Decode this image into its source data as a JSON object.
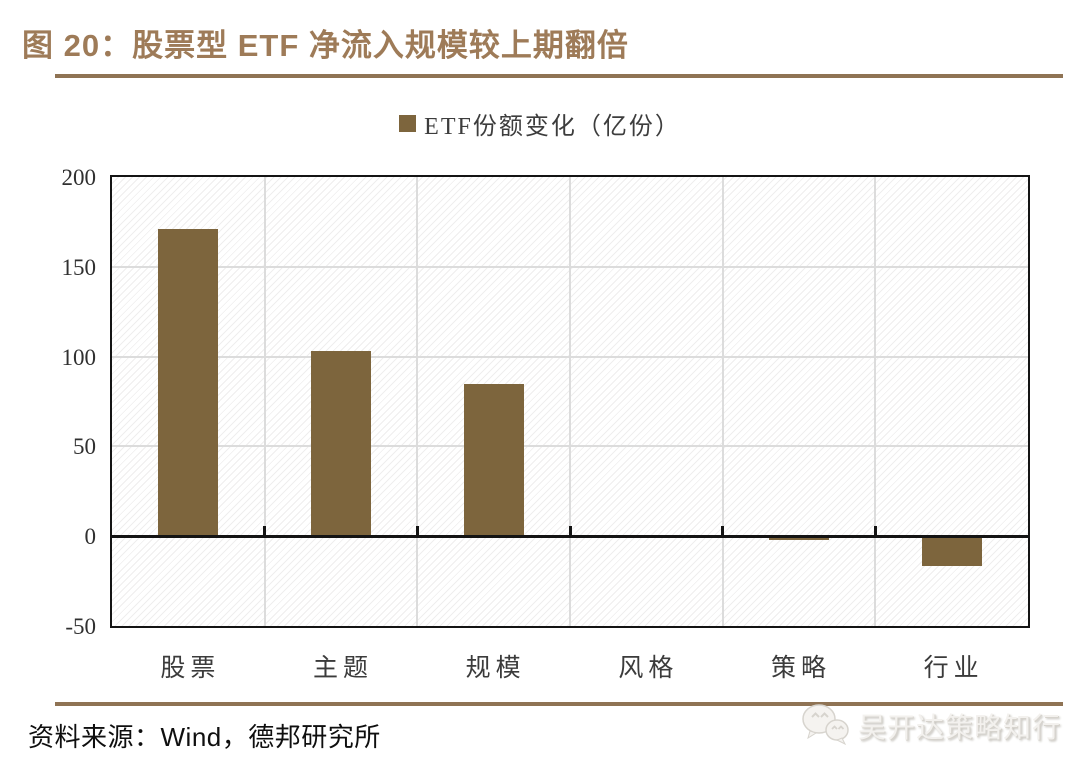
{
  "figure": {
    "title": "图 20：股票型 ETF 净流入规模较上期翻倍",
    "source": "资料来源：Wind，德邦研究所",
    "watermark": "吴开达策略知行"
  },
  "chart_data": {
    "type": "bar",
    "legend_label": "ETF份额变化（亿份）",
    "categories": [
      "股票",
      "主题",
      "规模",
      "风格",
      "策略",
      "行业"
    ],
    "values": [
      171,
      103,
      85,
      0,
      -1.5,
      -16
    ],
    "ylim": [
      -50,
      200
    ],
    "yticks": [
      200,
      150,
      100,
      50,
      0,
      -50
    ],
    "bar_color": "#7D653D",
    "grid": true,
    "legend_position": "top",
    "plot_background": "diagonal-hatch",
    "title": "",
    "xlabel": "",
    "ylabel": ""
  },
  "colors": {
    "title_text": "#9E7B58",
    "divider": "#8F7354",
    "bar": "#7D653D",
    "gridline": "#DCDCDC",
    "axis": "#141414",
    "tick_label": "#303030"
  }
}
